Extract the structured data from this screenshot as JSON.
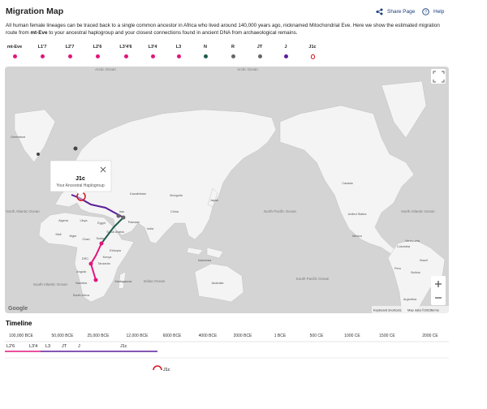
{
  "header": {
    "title": "Migration Map",
    "share": "Share Page",
    "help": "Help"
  },
  "description": {
    "before": "All human female lineages can be traced back to a single common ancestor in Africa who lived around 140,000 years ago, nicknamed Mitochondrial Eve. Here we show the estimated migration route from ",
    "bold": "mt-Eve",
    "after": " to your ancestral haplogroup and your closest connections found in ancient DNA from archaeological remains."
  },
  "haplogroups": [
    {
      "name": "mt-Eve",
      "color": "#e0167c"
    },
    {
      "name": "L1'7",
      "color": "#e0167c"
    },
    {
      "name": "L2'7",
      "color": "#e0167c"
    },
    {
      "name": "L2'6",
      "color": "#e0167c"
    },
    {
      "name": "L3'4'6",
      "color": "#e0167c"
    },
    {
      "name": "L3'4",
      "color": "#e0167c"
    },
    {
      "name": "L3",
      "color": "#e0167c"
    },
    {
      "name": "N",
      "color": "#1f5c4f"
    },
    {
      "name": "R",
      "color": "#666666"
    },
    {
      "name": "JT",
      "color": "#666666"
    },
    {
      "name": "J",
      "color": "#5b1f9a"
    },
    {
      "name": "J1c",
      "color": "#d8141b"
    }
  ],
  "map": {
    "labels": [
      "Arctic Ocean",
      "Arctic Ocean",
      "Greenland",
      "Canada",
      "United States",
      "Mexico",
      "North Atlantic Ocean",
      "North Atlantic Ocean",
      "North Pacific Ocean",
      "South Pacific Ocean",
      "South Atlantic Ocean",
      "Indian Ocean",
      "Kazakhstan",
      "Mongolia",
      "China",
      "India",
      "Pakistan",
      "Iran",
      "Saudi Arabia",
      "Egypt",
      "Algeria",
      "Libya",
      "Mali",
      "Niger",
      "Chad",
      "Sudan",
      "Ethiopia",
      "Kenya",
      "DRC",
      "Tanzania",
      "Angola",
      "Namibia",
      "South Africa",
      "Madagascar",
      "Japan",
      "Indonesia",
      "Australia",
      "Brazil",
      "Peru",
      "Colombia",
      "Venezuela",
      "Bolivia",
      "Argentina"
    ],
    "popup": {
      "title": "J1c",
      "subtitle": "Your Ancestral Haplogroup"
    },
    "logo": "Google",
    "shortcuts": "Keyboard shortcuts",
    "attribution": "Map data ©2023",
    "terms": "Terms"
  },
  "timeline": {
    "title": "Timeline",
    "ticks": [
      "100,000 BCE",
      "50,000 BCE",
      "25,000 BCE",
      "12,000 BCE",
      "6000 BCE",
      "4000 BCE",
      "2000 BCE",
      "1 BCE",
      "500 CE",
      "1000 CE",
      "1500 CE",
      "2000 CE"
    ],
    "lineages": [
      "L2'6",
      "L3'4",
      "L3",
      "JT",
      "J",
      "J1c"
    ],
    "marker": "J1c"
  }
}
